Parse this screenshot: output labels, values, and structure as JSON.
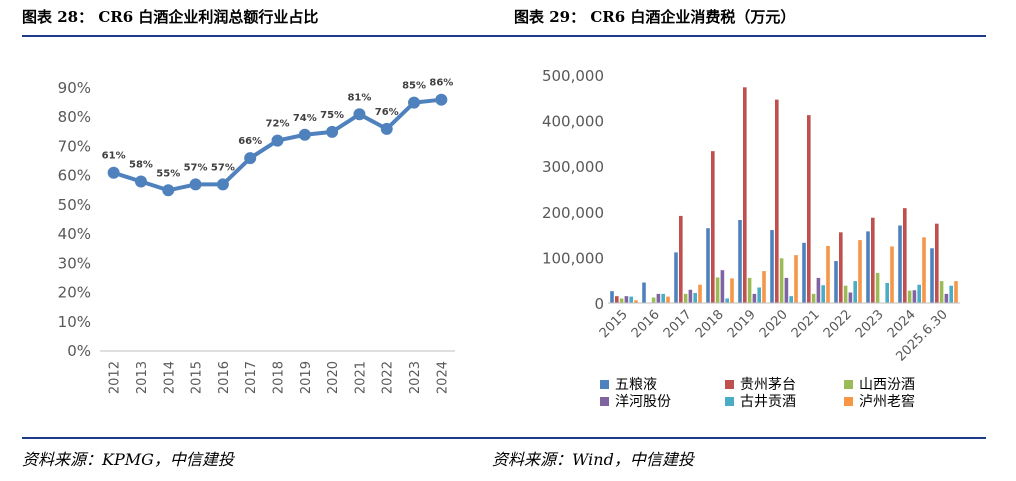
{
  "left_panel": {
    "title": "图表 28： CR6 白酒企业利润总额行业占比",
    "source": "资料来源：KPMG，中信建投"
  },
  "right_panel": {
    "title": "图表 29： CR6 白酒企业消费税（万元）",
    "source": "资料来源：Wind，中信建投"
  },
  "colors": {
    "rule": "#1f3b8a",
    "line": "#4f81bd",
    "wuliangye": "#4f81bd",
    "guizhou": "#c0504d",
    "shanxi": "#9bbb59",
    "yanghe": "#8064a2",
    "gujing": "#4bacc6",
    "luzhou": "#f79646"
  },
  "chart_data": [
    {
      "type": "line",
      "title": "CR6 白酒企业利润总额行业占比",
      "categories": [
        "2012",
        "2013",
        "2014",
        "2015",
        "2016",
        "2017",
        "2018",
        "2019",
        "2020",
        "2021",
        "2022",
        "2023",
        "2024"
      ],
      "values": [
        61,
        58,
        55,
        57,
        57,
        66,
        72,
        74,
        75,
        81,
        76,
        85,
        86
      ],
      "data_labels": [
        "61%",
        "58%",
        "55%",
        "57%",
        "57%",
        "66%",
        "72%",
        "74%",
        "75%",
        "81%",
        "76%",
        "85%",
        "86%"
      ],
      "yticks": [
        "0%",
        "10%",
        "20%",
        "30%",
        "40%",
        "50%",
        "60%",
        "70%",
        "80%",
        "90%"
      ],
      "ylim": [
        0,
        90
      ],
      "grid": false
    },
    {
      "type": "bar",
      "title": "CR6 白酒企业消费税（万元）",
      "categories": [
        "2015",
        "2016",
        "2017",
        "2018",
        "2019",
        "2020",
        "2021",
        "2022",
        "2023",
        "2024",
        "2025.6.30"
      ],
      "yticks": [
        "0",
        "100,000",
        "200,000",
        "300,000",
        "400,000",
        "500,000"
      ],
      "ylim": [
        0,
        500000
      ],
      "grid": false,
      "legend_position": "bottom",
      "series": [
        {
          "name": "五粮液",
          "color_key": "wuliangye",
          "values": [
            26000,
            45000,
            111000,
            164000,
            182000,
            160000,
            132000,
            92000,
            157000,
            170000,
            120000
          ]
        },
        {
          "name": "贵州茅台",
          "color_key": "guizhou",
          "values": [
            15000,
            0,
            191000,
            333000,
            473000,
            446000,
            412000,
            155000,
            187000,
            208000,
            174000
          ]
        },
        {
          "name": "山西汾酒",
          "color_key": "shanxi",
          "values": [
            10000,
            12000,
            20000,
            56000,
            55000,
            98000,
            20000,
            38000,
            66000,
            27000,
            48000
          ]
        },
        {
          "name": "洋河股份",
          "color_key": "yanghe",
          "values": [
            15000,
            20000,
            29000,
            72000,
            20000,
            55000,
            55000,
            23000,
            0,
            28000,
            20000
          ]
        },
        {
          "name": "古井贡酒",
          "color_key": "gujing",
          "values": [
            14000,
            20000,
            22000,
            10000,
            34000,
            15000,
            39000,
            48000,
            44000,
            40000,
            38000
          ]
        },
        {
          "name": "泸州老窖",
          "color_key": "luzhou",
          "values": [
            6000,
            14000,
            40000,
            54000,
            70000,
            105000,
            125000,
            138000,
            124000,
            144000,
            48000
          ]
        }
      ]
    }
  ]
}
